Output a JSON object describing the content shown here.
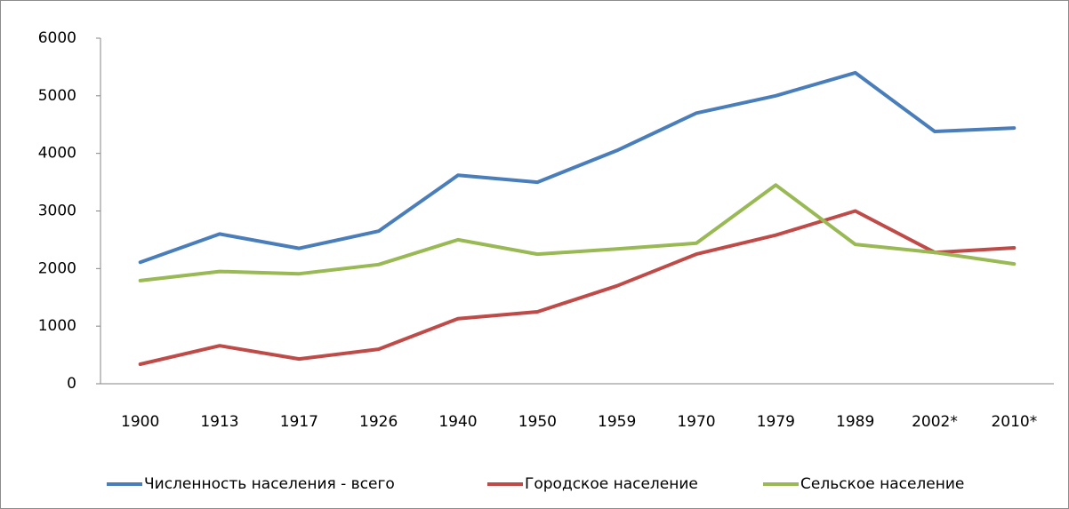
{
  "chart_data": {
    "type": "line",
    "categories": [
      "1900",
      "1913",
      "1917",
      "1926",
      "1940",
      "1950",
      "1959",
      "1970",
      "1979",
      "1989",
      "2002*",
      "2010*"
    ],
    "series": [
      {
        "name": "Численность населения - всего",
        "color": "#4a7ebb",
        "values": [
          2110,
          2600,
          2350,
          2650,
          3620,
          3500,
          4050,
          4700,
          5000,
          5400,
          4380,
          4440
        ]
      },
      {
        "name": "Городское население",
        "color": "#be4b48",
        "values": [
          340,
          660,
          430,
          600,
          1130,
          1250,
          1700,
          2250,
          2580,
          3000,
          2280,
          2360
        ]
      },
      {
        "name": "Сельское население",
        "color": "#98b954",
        "values": [
          1790,
          1950,
          1910,
          2070,
          2500,
          2250,
          2340,
          2440,
          3450,
          2420,
          2280,
          2080
        ]
      }
    ],
    "ylim": [
      0,
      6000
    ],
    "yticks": [
      0,
      1000,
      2000,
      3000,
      4000,
      5000,
      6000
    ],
    "grid": false,
    "legend": "bottom"
  }
}
